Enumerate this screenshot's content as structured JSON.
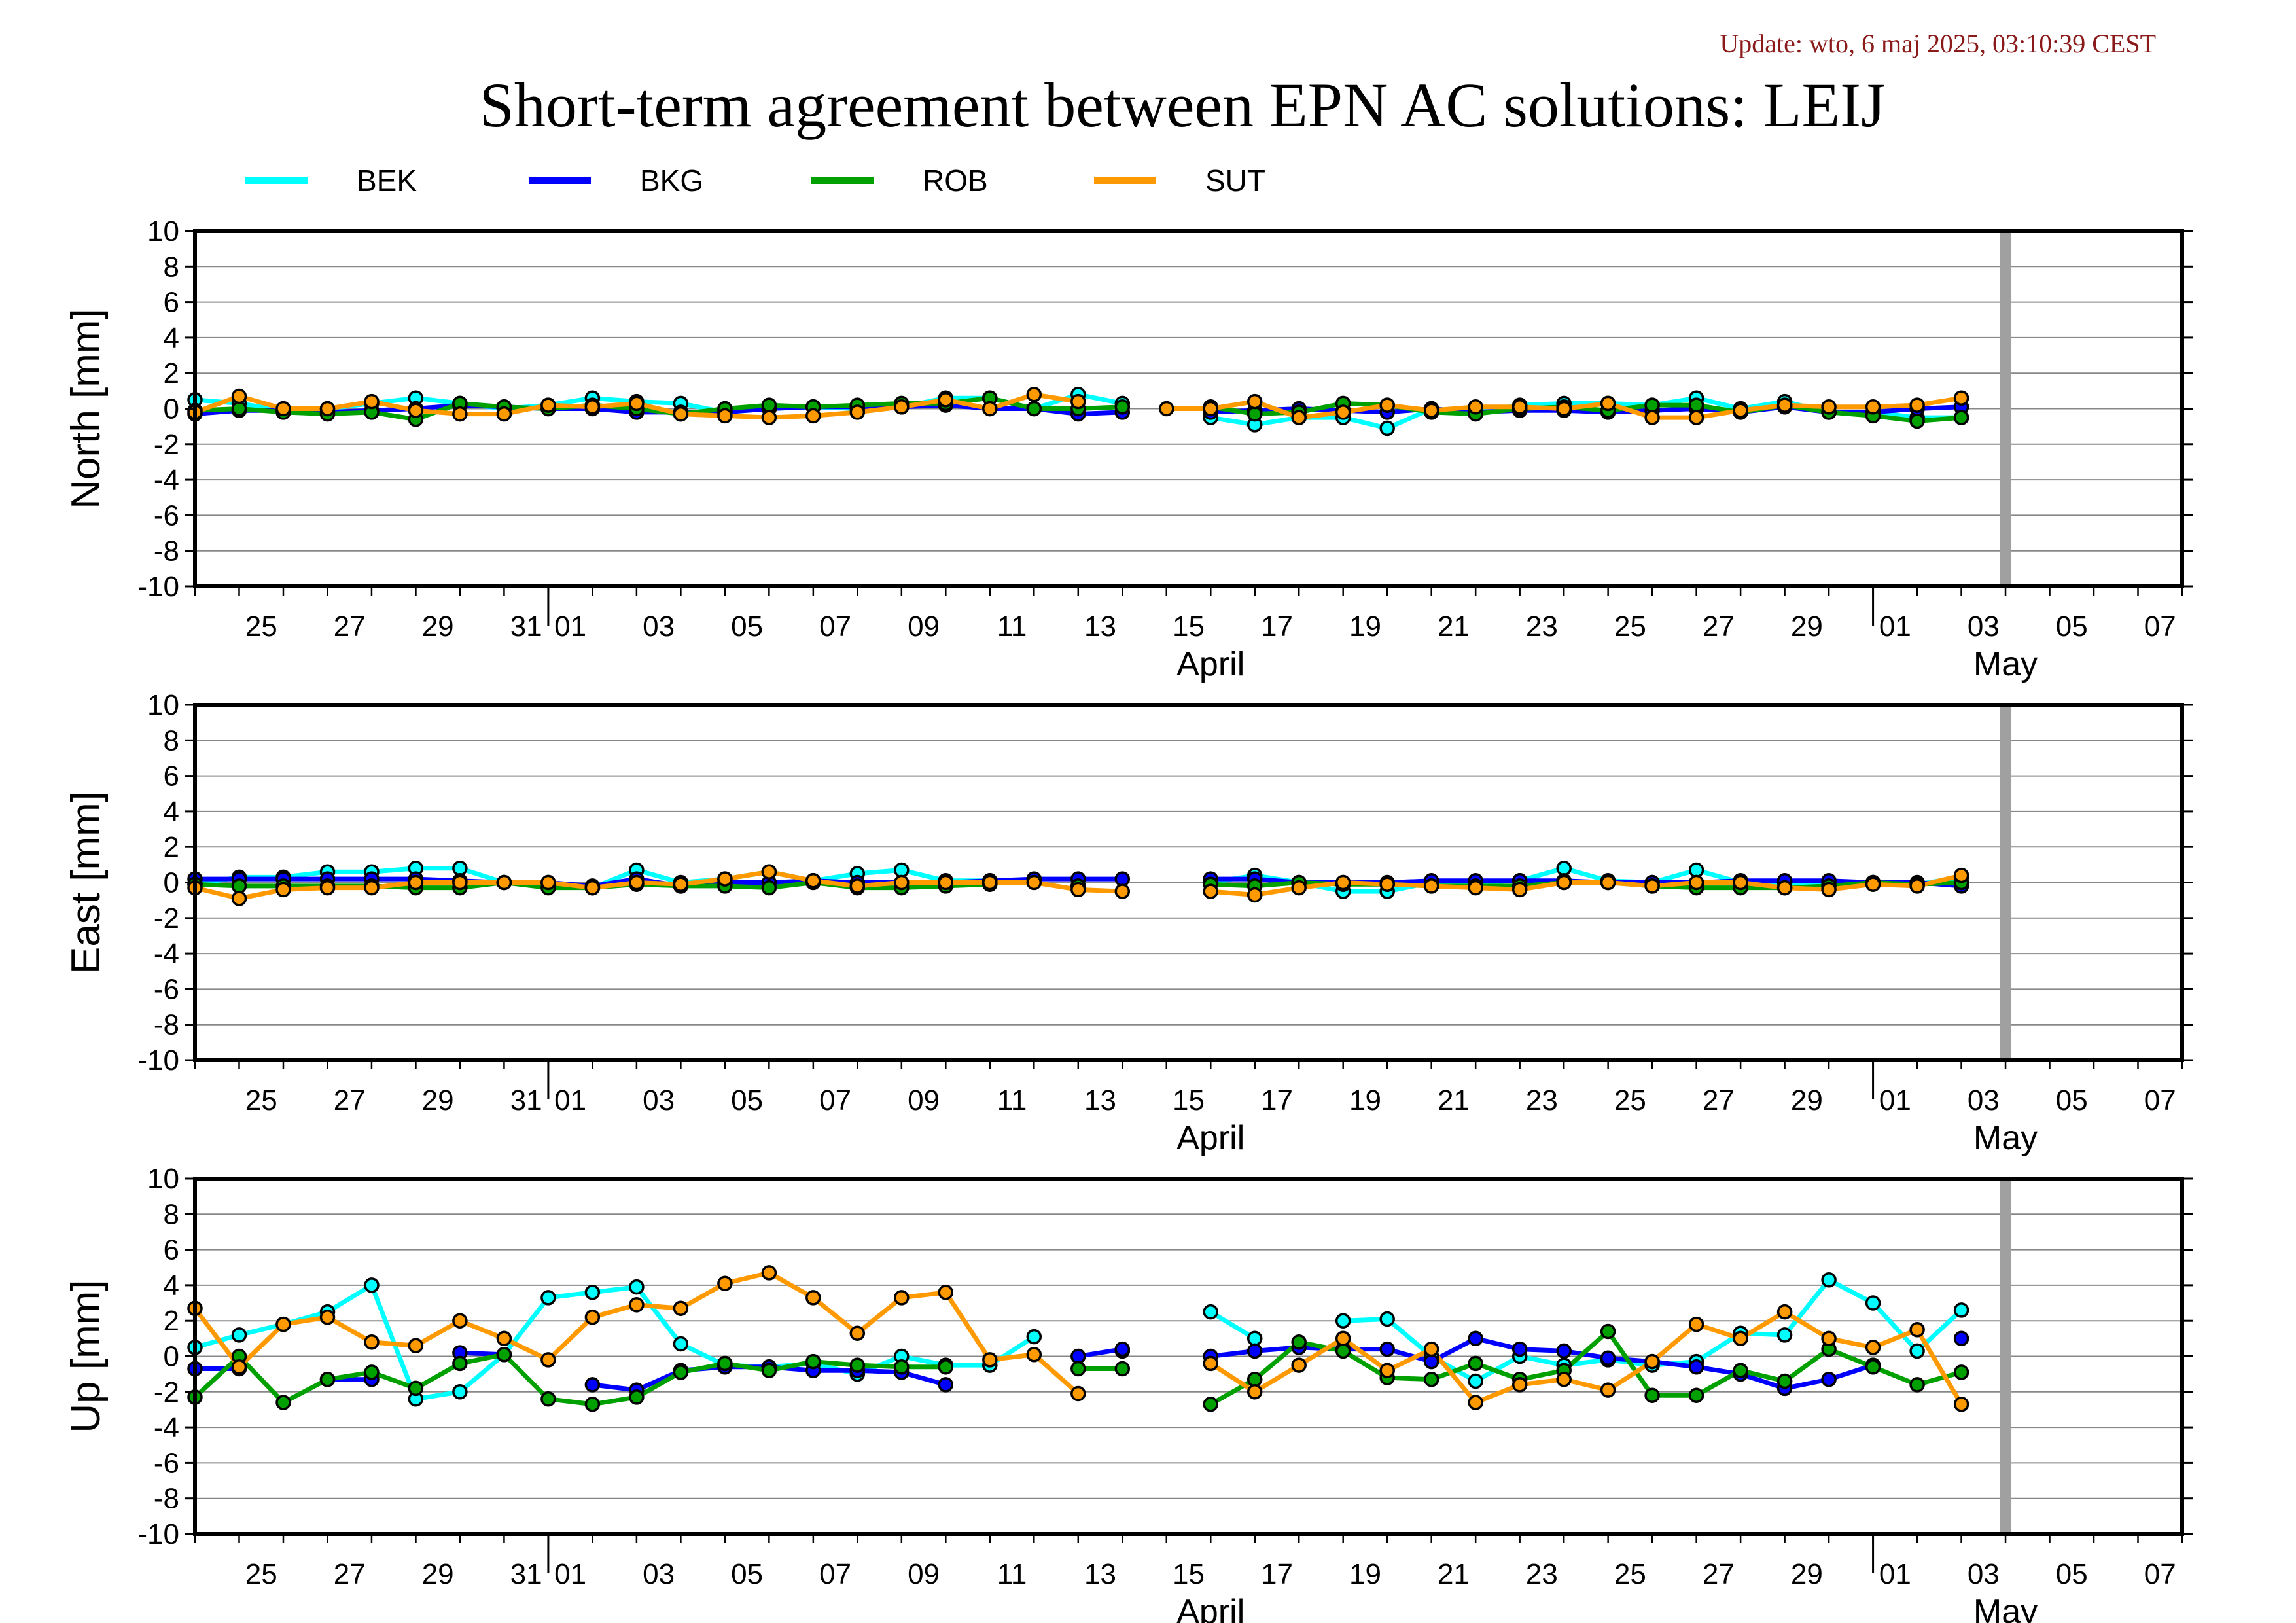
{
  "update_text": "Update: wto, 6 maj 2025, 03:10:39 CEST",
  "title": "Short-term agreement between EPN AC solutions: LEIJ",
  "colors": {
    "BEK": "#00ffff",
    "BKG": "#0000ff",
    "ROB": "#00a000",
    "SUT": "#ff9900",
    "gap": "#a0a0a0"
  },
  "chart_data": [
    {
      "type": "line",
      "ylabel": "North [mm]",
      "ylim": [
        -10,
        10
      ],
      "yticks": [
        10,
        8,
        6,
        4,
        2,
        0,
        -2,
        -4,
        -6,
        -8,
        -10
      ],
      "xlim": [
        "2025-03-24",
        "2025-05-08"
      ],
      "xtick_labels": [
        "25",
        "27",
        "29",
        "31",
        "01",
        "03",
        "05",
        "07",
        "09",
        "11",
        "13",
        "15",
        "17",
        "19",
        "21",
        "23",
        "25",
        "27",
        "29",
        "01",
        "03",
        "05",
        "07"
      ],
      "month_labels": [
        "April",
        "May"
      ],
      "x": [
        "2025-03-24",
        "2025-03-25",
        "2025-03-26",
        "2025-03-27",
        "2025-03-28",
        "2025-03-29",
        "2025-03-30",
        "2025-03-31",
        "2025-04-01",
        "2025-04-02",
        "2025-04-03",
        "2025-04-04",
        "2025-04-05",
        "2025-04-06",
        "2025-04-07",
        "2025-04-08",
        "2025-04-09",
        "2025-04-10",
        "2025-04-11",
        "2025-04-12",
        "2025-04-13",
        "2025-04-14",
        "2025-04-15",
        "2025-04-16",
        "2025-04-17",
        "2025-04-18",
        "2025-04-19",
        "2025-04-20",
        "2025-04-21",
        "2025-04-22",
        "2025-04-23",
        "2025-04-24",
        "2025-04-25",
        "2025-04-26",
        "2025-04-27",
        "2025-04-28",
        "2025-04-29",
        "2025-04-30",
        "2025-05-01",
        "2025-05-02",
        "2025-05-03"
      ],
      "series": [
        {
          "name": "BEK",
          "values": [
            0.5,
            0.3,
            -0.1,
            0.0,
            0.3,
            0.6,
            0.3,
            0.0,
            0.2,
            0.6,
            0.4,
            0.3,
            -0.2,
            0.0,
            0.1,
            0.0,
            0.1,
            0.6,
            0.6,
            0.0,
            0.8,
            0.3,
            null,
            -0.5,
            -0.9,
            -0.5,
            -0.5,
            -1.1,
            0.0,
            -0.2,
            0.2,
            0.3,
            0.3,
            0.2,
            0.6,
            0.0,
            0.4,
            -0.2,
            -0.2,
            -0.5,
            -0.5
          ]
        },
        {
          "name": "BKG",
          "values": [
            -0.3,
            -0.1,
            -0.1,
            -0.2,
            -0.1,
            0.0,
            0.2,
            0.1,
            0.0,
            0.0,
            -0.2,
            -0.2,
            -0.2,
            0.0,
            0.1,
            0.1,
            0.1,
            0.2,
            0.0,
            0.0,
            -0.3,
            -0.2,
            null,
            -0.2,
            -0.1,
            0.0,
            -0.1,
            -0.2,
            0.0,
            -0.2,
            -0.1,
            -0.1,
            -0.2,
            -0.1,
            0.0,
            -0.2,
            0.1,
            -0.2,
            -0.2,
            0.0,
            0.1
          ]
        },
        {
          "name": "ROB",
          "values": [
            -0.1,
            0.0,
            -0.2,
            -0.3,
            -0.2,
            -0.6,
            0.3,
            0.1,
            0.0,
            0.2,
            0.0,
            -0.3,
            0.0,
            0.2,
            0.1,
            0.2,
            0.3,
            0.3,
            0.6,
            0.0,
            0.0,
            0.1,
            null,
            0.1,
            -0.3,
            -0.2,
            0.3,
            0.2,
            -0.2,
            -0.3,
            0.0,
            0.1,
            -0.1,
            0.2,
            0.2,
            -0.2,
            0.2,
            -0.2,
            -0.4,
            -0.7,
            -0.5
          ]
        },
        {
          "name": "SUT",
          "values": [
            -0.2,
            0.7,
            0.0,
            0.0,
            0.4,
            -0.1,
            -0.3,
            -0.3,
            0.2,
            0.1,
            0.3,
            -0.3,
            -0.4,
            -0.5,
            -0.4,
            -0.2,
            0.1,
            0.5,
            0.0,
            0.8,
            0.4,
            null,
            0.0,
            0.0,
            0.4,
            -0.5,
            -0.2,
            0.2,
            -0.1,
            0.1,
            0.1,
            0.0,
            0.3,
            -0.5,
            -0.5,
            -0.1,
            0.2,
            0.1,
            0.1,
            0.2,
            0.6
          ]
        }
      ]
    },
    {
      "type": "line",
      "ylabel": "East [mm]",
      "ylim": [
        -10,
        10
      ],
      "yticks": [
        10,
        8,
        6,
        4,
        2,
        0,
        -2,
        -4,
        -6,
        -8,
        -10
      ],
      "xlim": [
        "2025-03-24",
        "2025-05-08"
      ],
      "xtick_labels": [
        "25",
        "27",
        "29",
        "31",
        "01",
        "03",
        "05",
        "07",
        "09",
        "11",
        "13",
        "15",
        "17",
        "19",
        "21",
        "23",
        "25",
        "27",
        "29",
        "01",
        "03",
        "05",
        "07"
      ],
      "month_labels": [
        "April",
        "May"
      ],
      "x": [
        "2025-03-24",
        "2025-03-25",
        "2025-03-26",
        "2025-03-27",
        "2025-03-28",
        "2025-03-29",
        "2025-03-30",
        "2025-03-31",
        "2025-04-01",
        "2025-04-02",
        "2025-04-03",
        "2025-04-04",
        "2025-04-05",
        "2025-04-06",
        "2025-04-07",
        "2025-04-08",
        "2025-04-09",
        "2025-04-10",
        "2025-04-11",
        "2025-04-12",
        "2025-04-13",
        "2025-04-14",
        "2025-04-15",
        "2025-04-16",
        "2025-04-17",
        "2025-04-18",
        "2025-04-19",
        "2025-04-20",
        "2025-04-21",
        "2025-04-22",
        "2025-04-23",
        "2025-04-24",
        "2025-04-25",
        "2025-04-26",
        "2025-04-27",
        "2025-04-28",
        "2025-04-29",
        "2025-04-30",
        "2025-05-01",
        "2025-05-02",
        "2025-05-03"
      ],
      "series": [
        {
          "name": "BEK",
          "values": [
            -0.1,
            0.3,
            0.3,
            0.6,
            0.6,
            0.8,
            0.8,
            0.0,
            0.0,
            -0.3,
            0.7,
            0.0,
            0.2,
            0.6,
            0.1,
            0.5,
            0.7,
            0.1,
            0.1,
            null,
            -0.2,
            null,
            null,
            0.0,
            0.4,
            0.0,
            -0.5,
            -0.5,
            0.0,
            0.0,
            0.1,
            0.8,
            0.1,
            0.0,
            0.7,
            0.0,
            0.0,
            0.0,
            0.0,
            -0.1,
            0.3
          ]
        },
        {
          "name": "BKG",
          "values": [
            0.2,
            0.2,
            0.2,
            0.2,
            0.2,
            0.2,
            0.1,
            0.0,
            0.0,
            -0.2,
            0.2,
            -0.2,
            0.0,
            0.0,
            0.1,
            0.0,
            0.0,
            0.0,
            0.1,
            0.2,
            0.2,
            0.2,
            null,
            0.2,
            0.2,
            0.0,
            0.0,
            0.0,
            0.1,
            0.1,
            0.1,
            0.1,
            0.0,
            0.0,
            0.0,
            0.1,
            0.1,
            0.1,
            0.0,
            0.0,
            -0.2
          ]
        },
        {
          "name": "ROB",
          "values": [
            -0.1,
            -0.2,
            -0.2,
            -0.2,
            -0.2,
            -0.3,
            -0.3,
            0.0,
            -0.3,
            -0.3,
            -0.1,
            -0.2,
            -0.2,
            -0.3,
            0.0,
            -0.3,
            -0.3,
            -0.2,
            -0.1,
            null,
            -0.2,
            null,
            null,
            -0.1,
            -0.2,
            0.0,
            -0.1,
            -0.1,
            -0.2,
            -0.2,
            -0.2,
            0.0,
            0.0,
            -0.2,
            -0.3,
            -0.3,
            -0.3,
            -0.2,
            0.0,
            -0.1,
            0.0
          ]
        },
        {
          "name": "SUT",
          "values": [
            -0.3,
            -0.9,
            -0.4,
            -0.3,
            -0.3,
            0.0,
            0.0,
            0.0,
            0.0,
            -0.3,
            0.0,
            -0.1,
            0.2,
            0.6,
            0.1,
            -0.2,
            0.0,
            0.0,
            0.0,
            0.0,
            -0.4,
            -0.5,
            null,
            -0.5,
            -0.7,
            -0.3,
            0.0,
            -0.1,
            -0.2,
            -0.3,
            -0.4,
            0.0,
            0.0,
            -0.2,
            0.0,
            0.0,
            -0.3,
            -0.4,
            -0.1,
            -0.2,
            0.4
          ]
        }
      ]
    },
    {
      "type": "line",
      "ylabel": "Up [mm]",
      "ylim": [
        -10,
        10
      ],
      "yticks": [
        10,
        8,
        6,
        4,
        2,
        0,
        -2,
        -4,
        -6,
        -8,
        -10
      ],
      "xlim": [
        "2025-03-24",
        "2025-05-08"
      ],
      "xtick_labels": [
        "25",
        "27",
        "29",
        "31",
        "01",
        "03",
        "05",
        "07",
        "09",
        "11",
        "13",
        "15",
        "17",
        "19",
        "21",
        "23",
        "25",
        "27",
        "29",
        "01",
        "03",
        "05",
        "07"
      ],
      "month_labels": [
        "April",
        "May"
      ],
      "x": [
        "2025-03-24",
        "2025-03-25",
        "2025-03-26",
        "2025-03-27",
        "2025-03-28",
        "2025-03-29",
        "2025-03-30",
        "2025-03-31",
        "2025-04-01",
        "2025-04-02",
        "2025-04-03",
        "2025-04-04",
        "2025-04-05",
        "2025-04-06",
        "2025-04-07",
        "2025-04-08",
        "2025-04-09",
        "2025-04-10",
        "2025-04-11",
        "2025-04-12",
        "2025-04-13",
        "2025-04-14",
        "2025-04-15",
        "2025-04-16",
        "2025-04-17",
        "2025-04-18",
        "2025-04-19",
        "2025-04-20",
        "2025-04-21",
        "2025-04-22",
        "2025-04-23",
        "2025-04-24",
        "2025-04-25",
        "2025-04-26",
        "2025-04-27",
        "2025-04-28",
        "2025-04-29",
        "2025-04-30",
        "2025-05-01",
        "2025-05-02",
        "2025-05-03"
      ],
      "series": [
        {
          "name": "BEK",
          "values": [
            0.5,
            1.2,
            1.8,
            2.5,
            4.0,
            -2.4,
            -2.0,
            0.1,
            3.3,
            3.6,
            3.9,
            0.7,
            -0.5,
            -0.6,
            -0.4,
            -1.0,
            0.0,
            -0.5,
            -0.5,
            1.1,
            null,
            0.3,
            null,
            2.5,
            1.0,
            null,
            2.0,
            2.1,
            0.0,
            -1.4,
            0.0,
            -0.5,
            -0.2,
            -0.5,
            -0.3,
            1.3,
            1.2,
            4.3,
            3.0,
            0.3,
            2.6
          ]
        },
        {
          "name": "BKG",
          "values": [
            -0.7,
            -0.7,
            null,
            -1.3,
            -1.3,
            null,
            0.2,
            0.1,
            null,
            -1.6,
            -1.9,
            -0.8,
            -0.6,
            -0.6,
            -0.8,
            -0.8,
            -0.9,
            -1.6,
            null,
            null,
            0.0,
            0.4,
            null,
            0.0,
            0.3,
            0.5,
            0.4,
            0.4,
            -0.3,
            1.0,
            0.4,
            0.3,
            -0.1,
            -0.3,
            -0.6,
            -1.0,
            -1.8,
            -1.3,
            -0.5,
            null,
            1.0
          ]
        },
        {
          "name": "ROB",
          "values": [
            -2.3,
            0.0,
            -2.6,
            -1.3,
            -0.9,
            -1.8,
            -0.4,
            0.1,
            -2.4,
            -2.7,
            -2.3,
            -0.9,
            -0.4,
            -0.8,
            -0.3,
            -0.5,
            -0.6,
            -0.6,
            null,
            null,
            -0.7,
            -0.7,
            null,
            -2.7,
            -1.3,
            0.8,
            0.3,
            -1.2,
            -1.3,
            -0.4,
            -1.3,
            -0.8,
            1.4,
            -2.2,
            -2.2,
            -0.8,
            -1.4,
            0.4,
            -0.6,
            -1.6,
            -0.9
          ]
        },
        {
          "name": "SUT",
          "values": [
            2.7,
            -0.6,
            1.8,
            2.2,
            0.8,
            0.6,
            2.0,
            1.0,
            -0.2,
            2.2,
            2.9,
            2.7,
            4.1,
            4.7,
            3.3,
            1.3,
            3.3,
            3.6,
            -0.2,
            0.1,
            -2.1,
            null,
            null,
            -0.4,
            -2.0,
            -0.5,
            1.0,
            -0.8,
            0.4,
            -2.6,
            -1.6,
            -1.3,
            -1.9,
            -0.3,
            1.8,
            1.0,
            2.5,
            1.0,
            0.5,
            1.5,
            -2.7
          ]
        }
      ]
    }
  ],
  "legend": [
    {
      "name": "BEK"
    },
    {
      "name": "BKG"
    },
    {
      "name": "ROB"
    },
    {
      "name": "SUT"
    }
  ]
}
